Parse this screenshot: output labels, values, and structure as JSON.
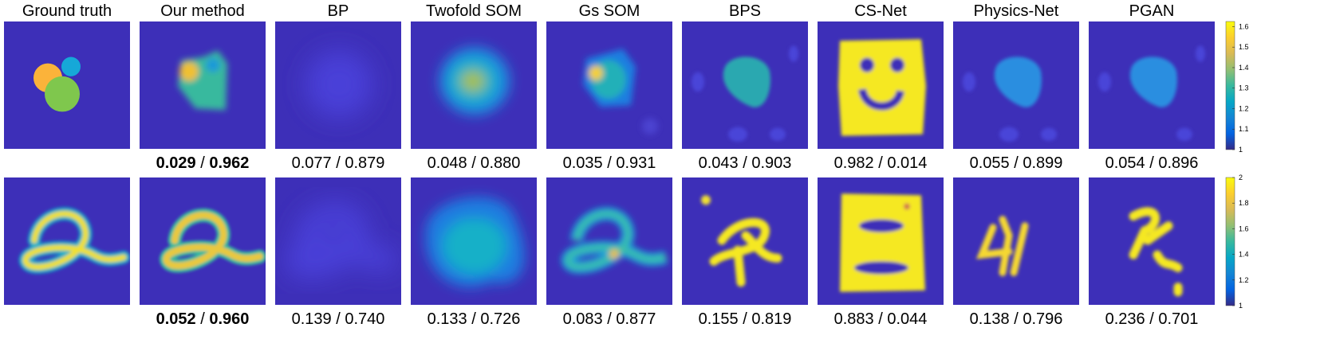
{
  "columns": [
    {
      "title": "Ground truth"
    },
    {
      "title": "Our method"
    },
    {
      "title": "BP"
    },
    {
      "title": "Twofold SOM"
    },
    {
      "title": "Gs SOM"
    },
    {
      "title": "BPS"
    },
    {
      "title": "CS-Net"
    },
    {
      "title": "Physics-Net"
    },
    {
      "title": "PGAN"
    }
  ],
  "metric_separator": "/",
  "rows": [
    {
      "metrics": [
        {
          "error": "0.029",
          "score": "0.962"
        },
        {
          "error": "0.077",
          "score": "0.879"
        },
        {
          "error": "0.048",
          "score": "0.880"
        },
        {
          "error": "0.035",
          "score": "0.931"
        },
        {
          "error": "0.043",
          "score": "0.903"
        },
        {
          "error": "0.982",
          "score": "0.014"
        },
        {
          "error": "0.055",
          "score": "0.899"
        },
        {
          "error": "0.054",
          "score": "0.896"
        }
      ],
      "colorbar_ticks": [
        "1",
        "1.1",
        "1.2",
        "1.3",
        "1.4",
        "1.5",
        "1.6"
      ]
    },
    {
      "metrics": [
        {
          "error": "0.052",
          "score": "0.960"
        },
        {
          "error": "0.139",
          "score": "0.740"
        },
        {
          "error": "0.133",
          "score": "0.726"
        },
        {
          "error": "0.083",
          "score": "0.877"
        },
        {
          "error": "0.155",
          "score": "0.819"
        },
        {
          "error": "0.883",
          "score": "0.044"
        },
        {
          "error": "0.138",
          "score": "0.796"
        },
        {
          "error": "0.236",
          "score": "0.701"
        }
      ],
      "colorbar_ticks": [
        "1",
        "1.2",
        "1.4",
        "1.6",
        "1.8",
        "2"
      ]
    }
  ]
}
